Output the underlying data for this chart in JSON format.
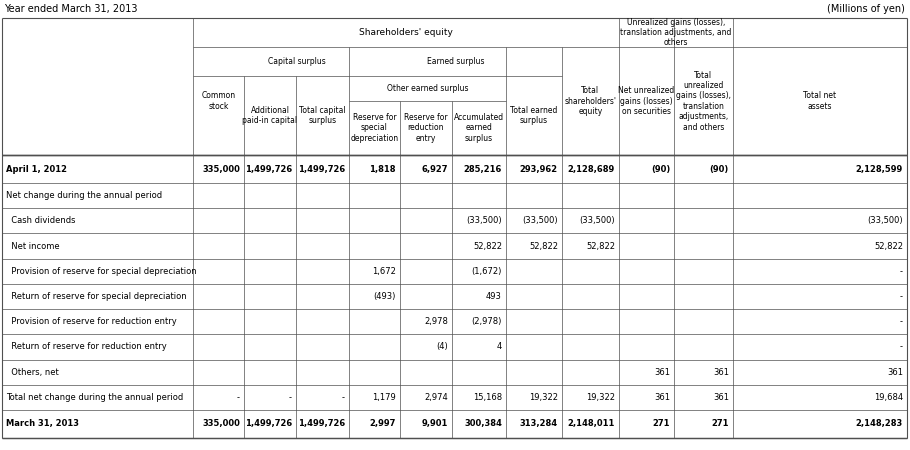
{
  "top_left_label": "Year ended March 31, 2013",
  "top_right_label": "(Millions of yen)",
  "rows": [
    {
      "label": "April 1, 2012",
      "bold": true,
      "thick_top": true,
      "thick_bot": false,
      "values": [
        "335,000",
        "1,499,726",
        "1,499,726",
        "1,818",
        "6,927",
        "285,216",
        "293,962",
        "2,128,689",
        "(90)",
        "(90)",
        "2,128,599"
      ]
    },
    {
      "label": "Net change during the annual period",
      "bold": false,
      "thick_top": false,
      "thick_bot": false,
      "values": [
        "",
        "",
        "",
        "",
        "",
        "",
        "",
        "",
        "",
        "",
        ""
      ]
    },
    {
      "label": "  Cash dividends",
      "bold": false,
      "thick_top": false,
      "thick_bot": false,
      "values": [
        "",
        "",
        "",
        "",
        "",
        "(33,500)",
        "(33,500)",
        "(33,500)",
        "",
        "",
        "(33,500)"
      ]
    },
    {
      "label": "  Net income",
      "bold": false,
      "thick_top": false,
      "thick_bot": false,
      "values": [
        "",
        "",
        "",
        "",
        "",
        "52,822",
        "52,822",
        "52,822",
        "",
        "",
        "52,822"
      ]
    },
    {
      "label": "  Provision of reserve for special depreciation",
      "bold": false,
      "thick_top": false,
      "thick_bot": false,
      "values": [
        "",
        "",
        "",
        "1,672",
        "",
        "(1,672)",
        "",
        "",
        "",
        "",
        "-"
      ]
    },
    {
      "label": "  Return of reserve for special depreciation",
      "bold": false,
      "thick_top": false,
      "thick_bot": false,
      "values": [
        "",
        "",
        "",
        "(493)",
        "",
        "493",
        "",
        "",
        "",
        "",
        "-"
      ]
    },
    {
      "label": "  Provision of reserve for reduction entry",
      "bold": false,
      "thick_top": false,
      "thick_bot": false,
      "values": [
        "",
        "",
        "",
        "",
        "2,978",
        "(2,978)",
        "",
        "",
        "",
        "",
        "-"
      ]
    },
    {
      "label": "  Return of reserve for reduction entry",
      "bold": false,
      "thick_top": false,
      "thick_bot": false,
      "values": [
        "",
        "",
        "",
        "",
        "(4)",
        "4",
        "",
        "",
        "",
        "",
        "-"
      ]
    },
    {
      "label": "  Others, net",
      "bold": false,
      "thick_top": false,
      "thick_bot": false,
      "values": [
        "",
        "",
        "",
        "",
        "",
        "",
        "",
        "",
        "361",
        "361",
        "361"
      ]
    },
    {
      "label": "Total net change during the annual period",
      "bold": false,
      "thick_top": false,
      "thick_bot": false,
      "values": [
        "-",
        "-",
        "-",
        "1,179",
        "2,974",
        "15,168",
        "19,322",
        "19,322",
        "361",
        "361",
        "19,684"
      ]
    },
    {
      "label": "March 31, 2013",
      "bold": true,
      "thick_top": false,
      "thick_bot": true,
      "values": [
        "335,000",
        "1,499,726",
        "1,499,726",
        "2,997",
        "9,901",
        "300,384",
        "313,284",
        "2,148,011",
        "271",
        "271",
        "2,148,283"
      ]
    }
  ],
  "col_labels": [
    "Common\nstock",
    "Additional\npaid-in capital",
    "Total capital\nsurplus",
    "Reserve for\nspecial\ndepreciation",
    "Reserve for\nreduction\nentry",
    "Accumulated\nearned\nsurplus",
    "Total earned\nsurplus",
    "Total\nshareholders'\nequity",
    "Net unrealized\ngains (losses)\non securities",
    "Total\nunrealized\ngains (losses),\ntranslation\nadjustments,\nand others",
    "Total net\nassets"
  ],
  "bg_color": "#ffffff",
  "line_color": "#4f4f4f",
  "text_color": "#000000",
  "font_size": 6.0,
  "title_font_size": 7.0
}
